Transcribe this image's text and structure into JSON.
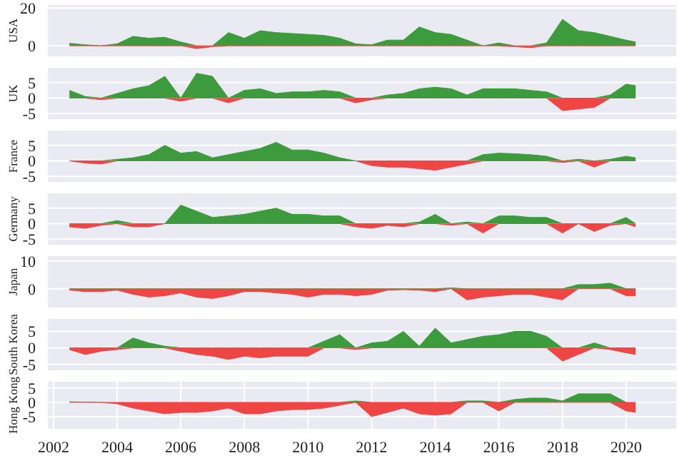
{
  "chart_data": [
    {
      "type": "area",
      "ylabel": "USA",
      "x": [
        2002.5,
        2003,
        2003.5,
        2004,
        2004.5,
        2005,
        2005.5,
        2006,
        2006.5,
        2007,
        2007.5,
        2008,
        2008.5,
        2009,
        2009.5,
        2010,
        2010.5,
        2011,
        2011.5,
        2012,
        2012.5,
        2013,
        2013.5,
        2014,
        2014.5,
        2015,
        2015.5,
        2016,
        2016.5,
        2017,
        2017.5,
        2018,
        2018.5,
        2019,
        2019.5,
        2020,
        2020.3
      ],
      "series": [
        {
          "color": "#3d9a3d",
          "values": [
            1.3,
            0.5,
            0,
            1,
            5,
            4,
            4.5,
            2,
            0,
            0,
            7,
            4,
            8,
            7,
            6.5,
            6,
            5.5,
            4,
            1,
            0.5,
            3,
            3,
            10,
            7,
            6,
            3,
            0,
            1.5,
            0,
            0,
            1.5,
            14,
            8,
            7,
            5,
            3,
            2
          ]
        },
        {
          "color": "#f04545",
          "values": [
            0,
            0,
            0,
            0,
            0,
            0,
            0,
            0,
            -1.5,
            -0.5,
            0,
            0,
            0,
            0,
            0,
            0,
            0,
            0,
            0,
            0,
            0,
            0,
            0,
            0,
            0,
            0,
            0,
            0,
            -0.5,
            -1,
            0,
            0,
            0,
            0,
            0,
            0,
            0
          ]
        }
      ],
      "xlim": [
        2001.8,
        2021.6
      ],
      "xticks": [
        2002,
        2004,
        2006,
        2008,
        2010,
        2012,
        2014,
        2016,
        2018,
        2020
      ],
      "ylim": [
        -6,
        22
      ],
      "yticks": [
        0,
        20
      ],
      "grid": true,
      "tick_labels": "y"
    },
    {
      "type": "area",
      "ylabel": "UK",
      "x": [
        2002.5,
        2003,
        2003.5,
        2004,
        2004.5,
        2005,
        2005.5,
        2006,
        2006.5,
        2007,
        2007.5,
        2008,
        2008.5,
        2009,
        2009.5,
        2010,
        2010.5,
        2011,
        2011.5,
        2012,
        2012.5,
        2013,
        2013.5,
        2014,
        2014.5,
        2015,
        2015.5,
        2016,
        2016.5,
        2017,
        2017.5,
        2018,
        2018.5,
        2019,
        2019.5,
        2020,
        2020.3
      ],
      "series": [
        {
          "color": "#3d9a3d",
          "values": [
            2.5,
            0.5,
            0,
            1.5,
            3,
            4,
            7,
            0,
            8,
            7,
            0,
            2.5,
            3,
            1.5,
            2,
            2,
            2.5,
            2,
            0,
            0,
            1,
            1.5,
            3,
            3.5,
            3,
            1,
            3,
            3,
            3,
            2.5,
            2,
            0,
            0,
            0,
            1,
            4.5,
            4
          ]
        },
        {
          "color": "#f04545",
          "values": [
            0,
            0,
            -0.5,
            0,
            0,
            0,
            0,
            -1,
            0,
            0,
            -1.5,
            0,
            0,
            0,
            0,
            0,
            0,
            0,
            -1.5,
            -0.5,
            0,
            0,
            0,
            0,
            0,
            0,
            0,
            0,
            0,
            0,
            0,
            -4,
            -3.5,
            -3,
            0,
            0,
            0
          ]
        }
      ],
      "xlim": [
        2001.8,
        2021.6
      ],
      "xticks": [
        2002,
        2004,
        2006,
        2008,
        2010,
        2012,
        2014,
        2016,
        2018,
        2020
      ],
      "ylim": [
        -7,
        10
      ],
      "yticks": [
        -5,
        0,
        5
      ],
      "grid": true,
      "tick_labels": "y"
    },
    {
      "type": "area",
      "ylabel": "France",
      "x": [
        2002.5,
        2003,
        2003.5,
        2004,
        2004.5,
        2005,
        2005.5,
        2006,
        2006.5,
        2007,
        2007.5,
        2008,
        2008.5,
        2009,
        2009.5,
        2010,
        2010.5,
        2011,
        2011.5,
        2012,
        2012.5,
        2013,
        2013.5,
        2014,
        2014.5,
        2015,
        2015.5,
        2016,
        2016.5,
        2017,
        2017.5,
        2018,
        2018.5,
        2019,
        2019.5,
        2020,
        2020.3
      ],
      "series": [
        {
          "color": "#3d9a3d",
          "values": [
            0,
            0,
            0,
            0.5,
            1,
            2,
            5,
            2.5,
            3,
            1,
            2,
            3,
            4,
            6,
            3.5,
            3.5,
            2.5,
            1,
            0,
            0,
            0,
            0,
            0,
            0,
            0,
            0,
            2,
            2.5,
            2.3,
            2,
            1.5,
            0,
            0.5,
            0,
            0.5,
            1.5,
            1
          ]
        },
        {
          "color": "#f04545",
          "values": [
            0,
            -0.7,
            -1,
            0,
            0,
            0,
            0,
            0,
            0,
            0,
            0,
            0,
            0,
            0,
            0,
            0,
            0,
            0,
            0,
            -1.5,
            -2,
            -2,
            -2.5,
            -3,
            -2,
            -1,
            0,
            0,
            0,
            0,
            0,
            -0.5,
            0,
            -2,
            0,
            0,
            0
          ]
        }
      ],
      "xlim": [
        2001.8,
        2021.6
      ],
      "xticks": [
        2002,
        2004,
        2006,
        2008,
        2010,
        2012,
        2014,
        2016,
        2018,
        2020
      ],
      "ylim": [
        -7,
        10
      ],
      "yticks": [
        -5,
        0,
        5
      ],
      "grid": true,
      "tick_labels": "y"
    },
    {
      "type": "area",
      "ylabel": "Germany",
      "x": [
        2002.5,
        2003,
        2003.5,
        2004,
        2004.5,
        2005,
        2005.5,
        2006,
        2006.5,
        2007,
        2007.5,
        2008,
        2008.5,
        2009,
        2009.5,
        2010,
        2010.5,
        2011,
        2011.5,
        2012,
        2012.5,
        2013,
        2013.5,
        2014,
        2014.5,
        2015,
        2015.5,
        2016,
        2016.5,
        2017,
        2017.5,
        2018,
        2018.5,
        2019,
        2019.5,
        2020,
        2020.3
      ],
      "series": [
        {
          "color": "#3d9a3d",
          "values": [
            0,
            0,
            0,
            1,
            0,
            0,
            0,
            6,
            4,
            2,
            2.5,
            3,
            4,
            5,
            3,
            3,
            2.5,
            2.5,
            0,
            0,
            0,
            0,
            0.5,
            3,
            0,
            0.5,
            0,
            2.5,
            2.5,
            2,
            2,
            0,
            0,
            0,
            0,
            2,
            0
          ]
        },
        {
          "color": "#f04545",
          "values": [
            -1,
            -1.5,
            -0.5,
            0,
            -1,
            -1,
            0,
            0,
            0,
            0,
            0,
            0,
            0,
            0,
            0,
            0,
            0,
            0,
            -1,
            -1.5,
            -0.5,
            -1,
            0,
            0,
            -0.5,
            0,
            -3,
            0,
            0,
            0,
            0,
            -3,
            0,
            -2.5,
            -0.5,
            0,
            -1
          ]
        }
      ],
      "xlim": [
        2001.8,
        2021.6
      ],
      "xticks": [
        2002,
        2004,
        2006,
        2008,
        2010,
        2012,
        2014,
        2016,
        2018,
        2020
      ],
      "ylim": [
        -7,
        10
      ],
      "yticks": [
        -5,
        0,
        5
      ],
      "grid": true,
      "tick_labels": "y"
    },
    {
      "type": "area",
      "ylabel": "Japan",
      "x": [
        2002.5,
        2003,
        2003.5,
        2004,
        2004.5,
        2005,
        2005.5,
        2006,
        2006.5,
        2007,
        2007.5,
        2008,
        2008.5,
        2009,
        2009.5,
        2010,
        2010.5,
        2011,
        2011.5,
        2012,
        2012.5,
        2013,
        2013.5,
        2014,
        2014.5,
        2015,
        2015.5,
        2016,
        2016.5,
        2017,
        2017.5,
        2018,
        2018.5,
        2019,
        2019.5,
        2020,
        2020.3
      ],
      "series": [
        {
          "color": "#3d9a3d",
          "values": [
            0,
            0,
            0,
            0,
            0,
            0,
            0,
            0,
            0,
            0,
            0,
            0,
            0,
            0,
            0,
            0,
            0,
            0,
            0,
            0,
            0,
            0,
            0,
            0,
            0.3,
            0,
            0,
            0,
            0,
            0,
            0,
            0,
            1.5,
            1.5,
            2,
            0,
            0
          ]
        },
        {
          "color": "#f04545",
          "values": [
            -0.5,
            -1,
            -1,
            -0.5,
            -2,
            -3,
            -2.5,
            -1.5,
            -3,
            -3.5,
            -2.5,
            -1,
            -1,
            -1.5,
            -2,
            -3,
            -2,
            -2,
            -2.5,
            -2,
            -0.5,
            -0.3,
            -0.5,
            -1,
            0,
            -4,
            -3,
            -2.5,
            -2,
            -2,
            -3,
            -4,
            0,
            0,
            0,
            -2.5,
            -2.5
          ]
        }
      ],
      "xlim": [
        2001.8,
        2021.6
      ],
      "xticks": [
        2002,
        2004,
        2006,
        2008,
        2010,
        2012,
        2014,
        2016,
        2018,
        2020
      ],
      "ylim": [
        -7,
        12
      ],
      "yticks": [
        0,
        10
      ],
      "grid": true,
      "tick_labels": "y"
    },
    {
      "type": "area",
      "ylabel": "South Korea",
      "x": [
        2002.5,
        2003,
        2003.5,
        2004,
        2004.5,
        2005,
        2005.5,
        2006,
        2006.5,
        2007,
        2007.5,
        2008,
        2008.5,
        2009,
        2009.5,
        2010,
        2010.5,
        2011,
        2011.5,
        2012,
        2012.5,
        2013,
        2013.5,
        2014,
        2014.5,
        2015,
        2015.5,
        2016,
        2016.5,
        2017,
        2017.5,
        2018,
        2018.5,
        2019,
        2019.5,
        2020,
        2020.3
      ],
      "series": [
        {
          "color": "#3d9a3d",
          "values": [
            0,
            0,
            0,
            0,
            3,
            1.5,
            0.5,
            0,
            0,
            0,
            0,
            0,
            0,
            0,
            0,
            0,
            2,
            4,
            0,
            1.5,
            2,
            5,
            0.5,
            6,
            1.5,
            2.5,
            3.5,
            4,
            5,
            5,
            3.5,
            0,
            0,
            1.5,
            0,
            0,
            0
          ]
        },
        {
          "color": "#f04545",
          "values": [
            -0.5,
            -2,
            -1,
            -0.5,
            0,
            0,
            0,
            -1,
            -2,
            -2.5,
            -3.5,
            -2.5,
            -3,
            -2.5,
            -2.5,
            -2.5,
            0,
            0,
            -0.5,
            0,
            0,
            0,
            0,
            0,
            0,
            0,
            0,
            0,
            0,
            0,
            0,
            -4,
            -2,
            0,
            -0.5,
            -1.5,
            -2
          ]
        }
      ],
      "xlim": [
        2001.8,
        2021.6
      ],
      "xticks": [
        2002,
        2004,
        2006,
        2008,
        2010,
        2012,
        2014,
        2016,
        2018,
        2020
      ],
      "ylim": [
        -7,
        9
      ],
      "yticks": [
        -5,
        0,
        5
      ],
      "grid": true,
      "tick_labels": "y"
    },
    {
      "type": "area",
      "ylabel": "Hong Kong",
      "x": [
        2002.5,
        2003,
        2003.5,
        2004,
        2004.5,
        2005,
        2005.5,
        2006,
        2006.5,
        2007,
        2007.5,
        2008,
        2008.5,
        2009,
        2009.5,
        2010,
        2010.5,
        2011,
        2011.5,
        2012,
        2012.5,
        2013,
        2013.5,
        2014,
        2014.5,
        2015,
        2015.5,
        2016,
        2016.5,
        2017,
        2017.5,
        2018,
        2018.5,
        2019,
        2019.5,
        2020,
        2020.3
      ],
      "series": [
        {
          "color": "#3d9a3d",
          "values": [
            0.2,
            0.1,
            0,
            0,
            0,
            0,
            0,
            0,
            0,
            0,
            0,
            0,
            0,
            0,
            0,
            0,
            0,
            0,
            0.5,
            0,
            0,
            0,
            0,
            0,
            0,
            0.5,
            0.5,
            0,
            1,
            1.5,
            1.5,
            0.5,
            3,
            3,
            3,
            0,
            0
          ]
        },
        {
          "color": "#f04545",
          "values": [
            0,
            0,
            0,
            -0.5,
            -2,
            -3,
            -4,
            -3.5,
            -3.5,
            -3,
            -2,
            -4,
            -4,
            -3,
            -2.5,
            -2.5,
            -2,
            -1,
            0,
            -5,
            -3.5,
            -2,
            -4,
            -4.5,
            -4,
            0,
            0,
            -3,
            0,
            0,
            0,
            0,
            0,
            0,
            0,
            -3,
            -3.5
          ]
        }
      ],
      "xlim": [
        2001.8,
        2021.6
      ],
      "xticks": [
        2002,
        2004,
        2006,
        2008,
        2010,
        2012,
        2014,
        2016,
        2018,
        2020
      ],
      "ylim": [
        -9.5,
        7.5
      ],
      "yticks": [
        -5,
        0,
        5
      ],
      "grid": true
    }
  ]
}
